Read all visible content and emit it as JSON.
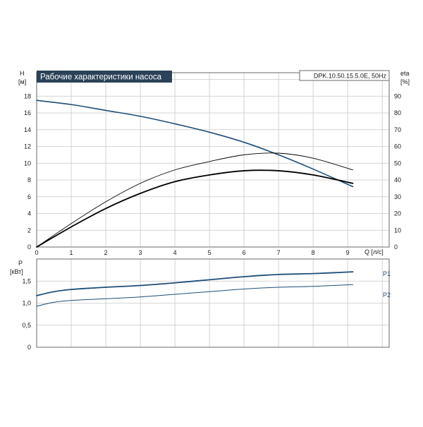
{
  "chart_data": [
    {
      "type": "line",
      "title": "Рабочие характеристики насоса",
      "model_label": "DPK.10.50.15.5.0E, 50Hz",
      "ylabel": "H",
      "yunit": "[м]",
      "y2label": "eta",
      "y2unit": "[%]",
      "xlabel": "Q [л/с]",
      "xlim": [
        0,
        10.2
      ],
      "ylim": [
        0,
        20.8
      ],
      "y2lim": [
        0,
        104
      ],
      "grid": true,
      "x_ticks": [
        "0",
        "1",
        "2",
        "3",
        "4",
        "5",
        "6",
        "7",
        "8",
        "9"
      ],
      "y_ticks": [
        "0",
        "2",
        "4",
        "6",
        "8",
        "10",
        "12",
        "14",
        "16",
        "18"
      ],
      "y2_ticks": [
        "0",
        "10",
        "20",
        "30",
        "40",
        "50",
        "60",
        "70",
        "80",
        "90"
      ],
      "colors": {
        "head": "#1f4e79",
        "efficiency": "#000000",
        "title_bg": "#2b4258"
      },
      "series": [
        {
          "axis": "H",
          "x": [
            0,
            1,
            2,
            3,
            4,
            5,
            6,
            7,
            8,
            9.15
          ],
          "y": [
            17.5,
            17.0,
            16.3,
            15.6,
            14.7,
            13.7,
            12.5,
            11.0,
            9.3,
            7.2
          ]
        },
        {
          "axis": "eta",
          "x": [
            0,
            1,
            2,
            3,
            4,
            5,
            6,
            7,
            8,
            9.15
          ],
          "y": [
            0,
            14,
            27,
            38,
            46,
            51,
            55,
            56,
            53,
            46
          ]
        },
        {
          "axis": "eta",
          "x": [
            0,
            1,
            2,
            3,
            4,
            5,
            6,
            7,
            8,
            9.15
          ],
          "y": [
            0,
            12,
            23,
            32,
            39,
            43,
            45.5,
            45.5,
            43,
            38
          ]
        }
      ]
    },
    {
      "type": "line",
      "ylabel": "P",
      "yunit": "[кВт]",
      "xlim": [
        0,
        10.2
      ],
      "ylim": [
        0,
        2.0
      ],
      "grid": true,
      "y_ticks": [
        "0",
        "0,5",
        "1,0",
        "1,5"
      ],
      "colors": {
        "p1": "#1f4e79",
        "p2": "#1f4e79"
      },
      "series": [
        {
          "name": "P1",
          "x": [
            0,
            0.5,
            1,
            2,
            3,
            4,
            5,
            6,
            7,
            8,
            9.15
          ],
          "y": [
            1.17,
            1.26,
            1.31,
            1.36,
            1.4,
            1.46,
            1.53,
            1.6,
            1.65,
            1.67,
            1.71
          ]
        },
        {
          "name": "P2",
          "x": [
            0,
            0.5,
            1,
            2,
            3,
            4,
            5,
            6,
            7,
            8,
            9.15
          ],
          "y": [
            0.93,
            1.02,
            1.06,
            1.1,
            1.14,
            1.2,
            1.26,
            1.32,
            1.36,
            1.38,
            1.42
          ]
        }
      ]
    }
  ]
}
